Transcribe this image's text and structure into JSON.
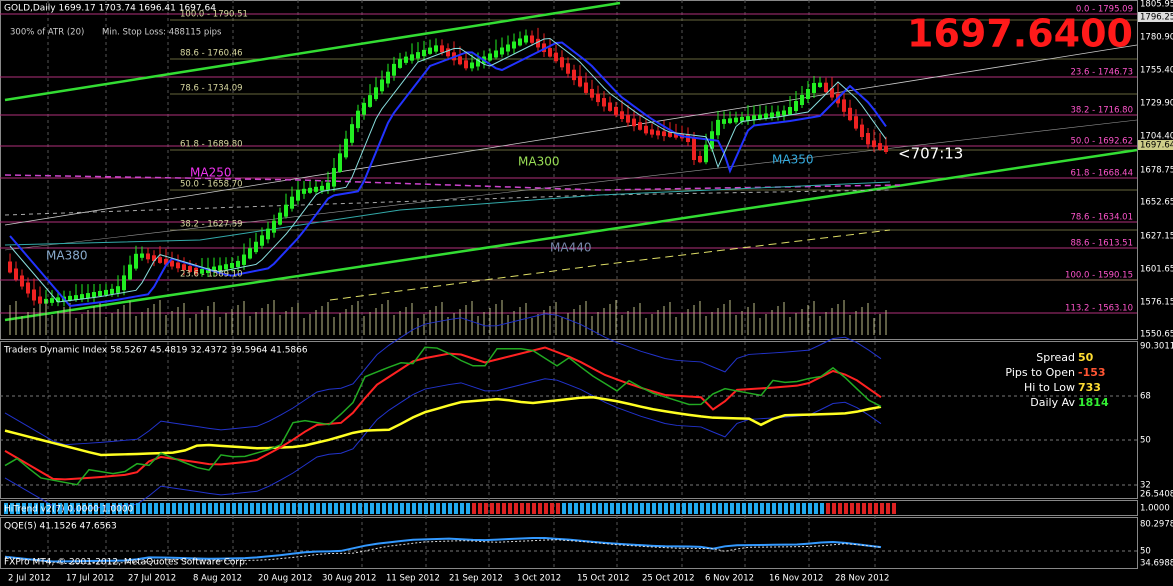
{
  "header": {
    "symbol": "GOLD,Daily  1699.17 1703.74 1696.41 1697.64",
    "atr": "300% of ATR (20)",
    "stop": "Min. Stop Loss:  488115 pips",
    "big_price": "1697.6400",
    "timer": "<707:13"
  },
  "fib_left": [
    "100.0 - 1790.51",
    "88.6 - 1760.46",
    "78.6 - 1734.09",
    "61.8 - 1689.80",
    "50.0 - 1658.70",
    "38.2 - 1627.59",
    "23.6 - 1589.10"
  ],
  "fib_right": [
    "0.0 - 1795.09",
    "23.6 - 1746.73",
    "38.2 - 1716.80",
    "50.0 - 1692.62",
    "61.8 - 1668.44",
    "78.6 - 1634.01",
    "88.6 - 1613.51",
    "100.0 - 1590.15",
    "113.2 - 1563.10"
  ],
  "ma_labels": [
    "MA250",
    "MA300",
    "MA350",
    "MA380",
    "MA440"
  ],
  "price_axis": [
    "1805.95",
    "1796.25",
    "1780.90",
    "1755.40",
    "1729.90",
    "1704.40",
    "1697.64",
    "1678.75",
    "1652.65",
    "1627.15",
    "1601.65",
    "1576.15",
    "1550.65"
  ],
  "tdi": {
    "title": "Traders Dynamic Index 58.5267 45.4819 32.4372 39.5964 41.5866",
    "axis": [
      "90.3011",
      "68",
      "50",
      "32",
      "26.5408"
    ]
  },
  "info": [
    {
      "label": "Spread",
      "value": "50"
    },
    {
      "label": "Pips to Open",
      "value": "-153"
    },
    {
      "label": "Hi to Low",
      "value": "733"
    },
    {
      "label": "Daily Av",
      "value": "1814"
    }
  ],
  "hitrend": {
    "title": "HiTrend v2(7) 0.0000 1.0000",
    "axis": [
      "1.0000"
    ]
  },
  "qqe": {
    "title": "QQE(5) 41.1526 47.6563",
    "axis": [
      "80.2978",
      "50",
      "34.6988"
    ]
  },
  "copyright": "FXPro MT4, © 2001-2012, MetaQuotes Software Corp.",
  "dates": [
    "2 Jul 2012",
    "17 Jul 2012",
    "27 Jul 2012",
    "8 Aug 2012",
    "20 Aug 2012",
    "30 Aug 2012",
    "11 Sep 2012",
    "21 Sep 2012",
    "3 Oct 2012",
    "15 Oct 2012",
    "25 Oct 2012",
    "6 Nov 2012",
    "16 Nov 2012",
    "28 Nov 2012"
  ]
}
